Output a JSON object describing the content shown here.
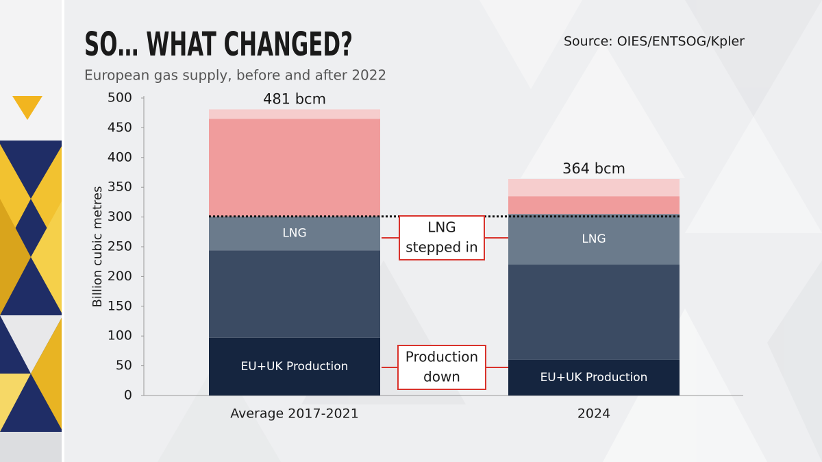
{
  "chart_data": {
    "type": "stacked_bar",
    "title": "SO… WHAT CHANGED?",
    "subtitle": "European gas supply, before and after 2022",
    "source": "Source: OIES/ENTSOG/Kpler",
    "y_label": "Billion cubic metres",
    "categories": [
      "Average 2017-2021",
      "2024"
    ],
    "series": [
      {
        "name": "EU+UK Production",
        "color": "#15253f",
        "values": [
          97,
          60
        ]
      },
      {
        "color": "#3b4b63",
        "values": [
          147,
          160
        ]
      },
      {
        "name": "LNG",
        "color": "#6b7b8c",
        "values": [
          57,
          85
        ]
      },
      {
        "color": "#f09c9c",
        "values": [
          164,
          30
        ]
      },
      {
        "color": "#f6cdcd",
        "values": [
          16,
          29
        ]
      }
    ],
    "total_labels": [
      "481 bcm",
      "364 bcm"
    ],
    "reference_line": 301,
    "callouts": [
      [
        "LNG",
        "stepped in"
      ],
      [
        "Production",
        "down"
      ]
    ],
    "ylim": [
      0,
      500
    ],
    "yticks": [
      0,
      50,
      100,
      150,
      200,
      250,
      300,
      350,
      400,
      450,
      500
    ]
  }
}
